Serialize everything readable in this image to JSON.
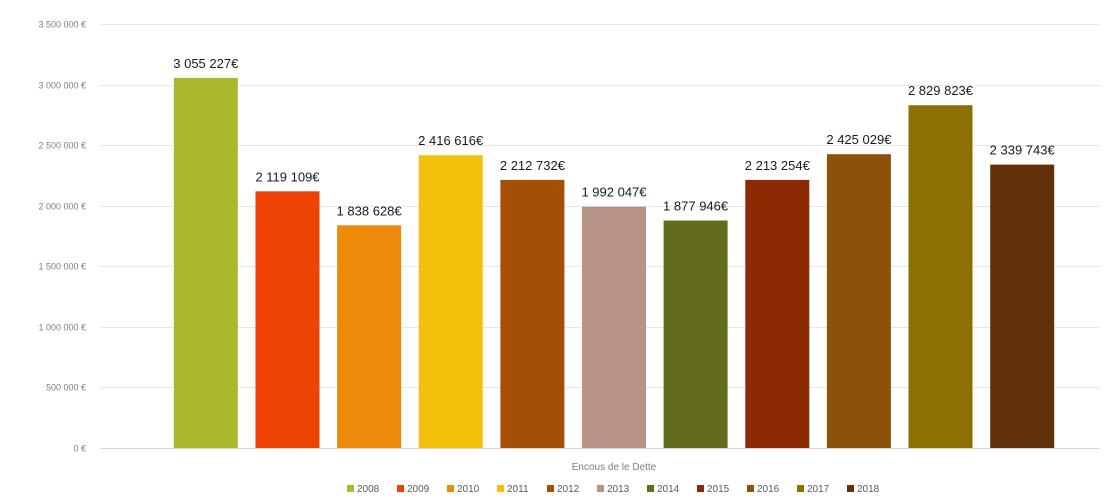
{
  "chart_data": {
    "type": "bar",
    "title": "",
    "xlabel": "Encous de le Dette",
    "ylabel": "",
    "ylim": [
      0,
      3500000
    ],
    "y_ticks": [
      0,
      500000,
      1000000,
      1500000,
      2000000,
      2500000,
      3000000,
      3500000
    ],
    "y_tick_labels": [
      "0 €",
      "500 000 €",
      "1 000 000 €",
      "1 500 000 €",
      "2 000 000 €",
      "2 500 000 €",
      "3 000 000 €",
      "3 500 000 €"
    ],
    "grid": true,
    "legend_position": "bottom",
    "categories": [
      "2008",
      "2009",
      "2010",
      "2011",
      "2012",
      "2013",
      "2014",
      "2015",
      "2016",
      "2017",
      "2018"
    ],
    "values": [
      3055227,
      2119109,
      1838628,
      2416616,
      2212732,
      1992047,
      1877946,
      2213254,
      2425029,
      2829823,
      2339743
    ],
    "data_labels": [
      "3 055 227€",
      "2 119 109€",
      "1 838 628€",
      "2 416 616€",
      "2 212 732€",
      "1 992 047€",
      "1 877 946€",
      "2 213 254€",
      "2 425 029€",
      "2 829 823€",
      "2 339 743€"
    ],
    "colors": [
      "#a9b82c",
      "#ef4306",
      "#ef890a",
      "#f2c10b",
      "#a34f05",
      "#b99384",
      "#636c1c",
      "#8c2a04",
      "#8e5109",
      "#8c7100",
      "#62310a"
    ]
  }
}
